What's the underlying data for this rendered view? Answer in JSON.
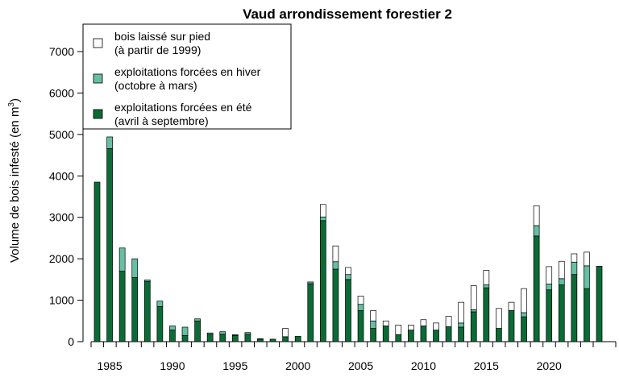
{
  "chart_data": {
    "type": "bar",
    "stacked": true,
    "title": "Vaud arrondissement forestier 2",
    "ylabel": "Volume de bois infesté (en m",
    "ylabel_sup": "3",
    "ylabel_end": ")",
    "xlabel": "",
    "ylim": [
      0,
      7600
    ],
    "yticks": [
      0,
      1000,
      2000,
      3000,
      4000,
      5000,
      6000,
      7000
    ],
    "xticks": [
      1985,
      1990,
      1995,
      2000,
      2005,
      2010,
      2015,
      2020
    ],
    "x": [
      1984,
      1985,
      1986,
      1987,
      1988,
      1989,
      1990,
      1991,
      1992,
      1993,
      1994,
      1995,
      1996,
      1997,
      1998,
      1999,
      2000,
      2001,
      2002,
      2003,
      2004,
      2005,
      2006,
      2007,
      2008,
      2009,
      2010,
      2011,
      2012,
      2013,
      2014,
      2015,
      2016,
      2017,
      2018,
      2019,
      2020,
      2021,
      2022,
      2023,
      2024
    ],
    "series": [
      {
        "name": "exploitations forcées en été (avril à septembre)",
        "color": "#0b6b36",
        "values": [
          3850,
          4660,
          1700,
          1550,
          1450,
          850,
          280,
          150,
          500,
          180,
          180,
          150,
          180,
          60,
          60,
          120,
          130,
          1400,
          2920,
          1750,
          1500,
          750,
          320,
          380,
          170,
          280,
          380,
          280,
          360,
          350,
          720,
          1300,
          320,
          750,
          600,
          2550,
          1250,
          1370,
          1620,
          1280,
          1820
        ]
      },
      {
        "name": "exploitations forcées en hiver (octobre à mars)",
        "color": "#66bfa4",
        "values": [
          0,
          280,
          560,
          450,
          40,
          130,
          100,
          200,
          50,
          30,
          60,
          20,
          40,
          10,
          0,
          0,
          0,
          40,
          90,
          180,
          120,
          150,
          180,
          0,
          0,
          0,
          0,
          0,
          0,
          100,
          50,
          70,
          0,
          0,
          100,
          250,
          140,
          150,
          300,
          550,
          0
        ]
      },
      {
        "name": "bois laissé sur pied (à partir de 1999)",
        "color": "#ffffff",
        "values": [
          0,
          0,
          0,
          0,
          0,
          0,
          0,
          0,
          0,
          0,
          0,
          0,
          0,
          0,
          0,
          200,
          0,
          0,
          300,
          380,
          170,
          200,
          250,
          120,
          230,
          120,
          150,
          170,
          250,
          500,
          580,
          350,
          480,
          200,
          580,
          480,
          420,
          420,
          200,
          330,
          0
        ]
      }
    ],
    "legend": {
      "placement": "top-left",
      "entries": [
        {
          "line1": "bois laissé sur pied",
          "line2": "(à partir de 1999)",
          "color": "#ffffff"
        },
        {
          "line1": "exploitations forcées en hiver",
          "line2": "(octobre à mars)",
          "color": "#66bfa4"
        },
        {
          "line1": "exploitations forcées en été",
          "line2": "(avril à septembre)",
          "color": "#0b6b36"
        }
      ]
    },
    "grid": false
  }
}
